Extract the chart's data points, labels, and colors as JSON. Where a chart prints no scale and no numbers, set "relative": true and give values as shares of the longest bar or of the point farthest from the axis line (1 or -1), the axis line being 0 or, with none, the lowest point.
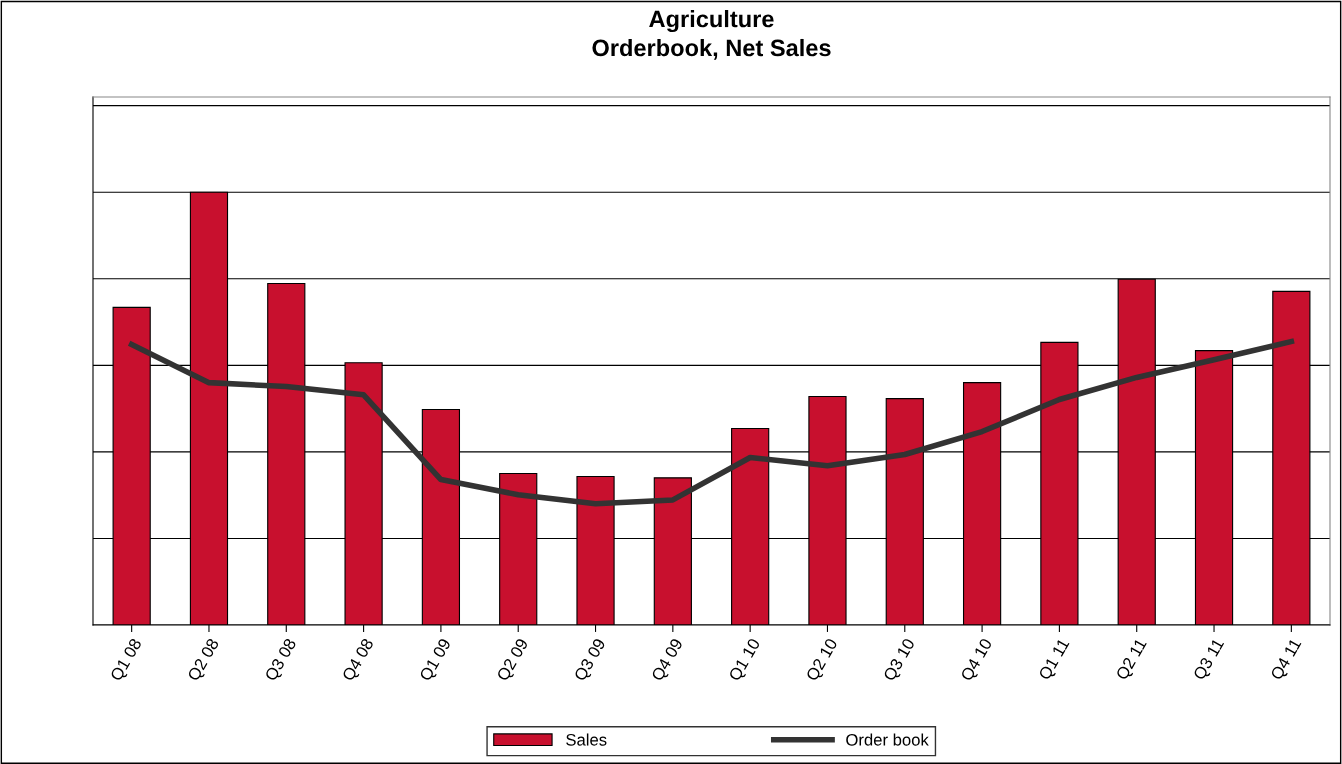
{
  "chart_data": {
    "type": "bar",
    "title": "Agriculture\nOrderbook, Net Sales",
    "relative": true,
    "grid": "y",
    "legend": "bottom",
    "categories": [
      "Q1 08",
      "Q2 08",
      "Q3 08",
      "Q4 08",
      "Q1 09",
      "Q2 09",
      "Q3 09",
      "Q4 09",
      "Q1 10",
      "Q2 10",
      "Q3 10",
      "Q4 10",
      "Q1 11",
      "Q2 11",
      "Q3 11",
      "Q4 11"
    ],
    "series": [
      {
        "name": "Sales",
        "color": "#c8102e",
        "values": [
          0.734,
          1,
          0.789,
          0.606,
          0.498,
          0.35,
          0.343,
          0.34,
          0.454,
          0.528,
          0.523,
          0.56,
          0.653,
          0.799,
          0.634,
          0.771
        ]
      },
      {
        "name": "Order book",
        "type": "line",
        "color": "#333333",
        "marker": "none",
        "line_style": "solid",
        "values": [
          0.648,
          0.56,
          0.551,
          0.532,
          0.336,
          0.301,
          0.28,
          0.289,
          0.387,
          0.368,
          0.394,
          0.447,
          0.521,
          0.572,
          0.613,
          0.655
        ]
      }
    ]
  }
}
